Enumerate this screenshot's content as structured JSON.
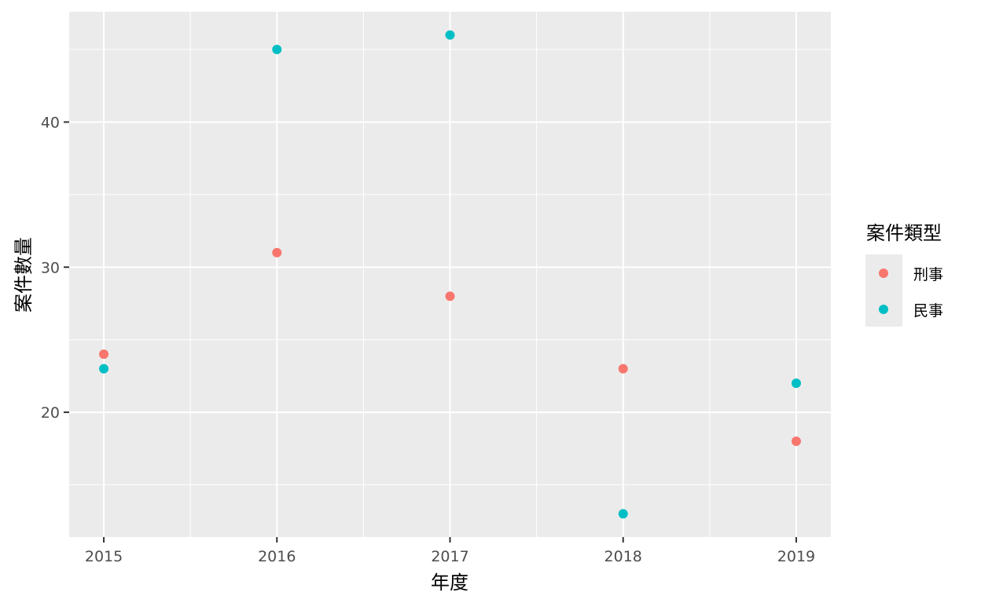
{
  "chart_data": {
    "type": "scatter",
    "xlabel": "年度",
    "ylabel": "案件數量",
    "x_ticks": [
      "2015",
      "2016",
      "2017",
      "2018",
      "2019"
    ],
    "y_ticks": [
      20,
      30,
      40
    ],
    "xlim": [
      2014.8,
      2019.2
    ],
    "ylim": [
      11.4,
      47.6
    ],
    "grid": true,
    "legend": {
      "title": "案件類型",
      "position": "right"
    },
    "series": [
      {
        "name": "刑事",
        "color": "#F8766D",
        "points": [
          {
            "x": 2015,
            "y": 24
          },
          {
            "x": 2016,
            "y": 31
          },
          {
            "x": 2017,
            "y": 28
          },
          {
            "x": 2018,
            "y": 23
          },
          {
            "x": 2019,
            "y": 18
          }
        ]
      },
      {
        "name": "民事",
        "color": "#00BFC4",
        "points": [
          {
            "x": 2015,
            "y": 23
          },
          {
            "x": 2016,
            "y": 45
          },
          {
            "x": 2017,
            "y": 46
          },
          {
            "x": 2018,
            "y": 13
          },
          {
            "x": 2019,
            "y": 22
          }
        ]
      }
    ]
  }
}
